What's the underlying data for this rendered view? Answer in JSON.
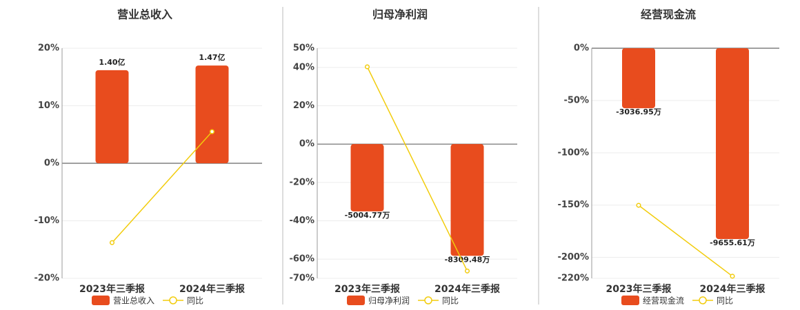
{
  "chart_data": [
    {
      "type": "bar",
      "title": "营业总收入",
      "categories": [
        "2023年三季报",
        "2024年三季报"
      ],
      "series": [
        {
          "name": "营业总收入",
          "color": "#e84c1e",
          "axis": "y2",
          "values": [
            1.4,
            1.47
          ],
          "value_labels": [
            "1.40亿",
            "1.47亿"
          ]
        },
        {
          "name": "同比",
          "type": "line",
          "color": "#f2cc0c",
          "values": [
            -13.8,
            5.5
          ]
        }
      ],
      "ylim": [
        -20,
        20
      ],
      "yticks": [
        {
          "value": 20,
          "label": "20%"
        },
        {
          "value": 10,
          "label": "10%"
        },
        {
          "value": 0,
          "label": "0%"
        },
        {
          "value": -10,
          "label": "-10%"
        },
        {
          "value": -20,
          "label": "-20%"
        }
      ],
      "y2lim": [
        -1.73,
        1.73
      ],
      "grid": true
    },
    {
      "type": "bar",
      "title": "归母净利润",
      "categories": [
        "2023年三季报",
        "2024年三季报"
      ],
      "series": [
        {
          "name": "归母净利润",
          "color": "#e84c1e",
          "axis": "y2",
          "values": [
            -5004.77,
            -8309.48
          ],
          "value_labels": [
            "-5004.77万",
            "-8309.48万"
          ]
        },
        {
          "name": "同比",
          "type": "line",
          "color": "#f2cc0c",
          "values": [
            40.3,
            -66.2
          ]
        }
      ],
      "ylim": [
        -70,
        50
      ],
      "yticks": [
        {
          "value": 50,
          "label": "50%"
        },
        {
          "value": 40,
          "label": "40%"
        },
        {
          "value": 20,
          "label": "20%"
        },
        {
          "value": 0,
          "label": "0%"
        },
        {
          "value": -20,
          "label": "-20%"
        },
        {
          "value": -40,
          "label": "-40%"
        },
        {
          "value": -60,
          "label": "-60%"
        },
        {
          "value": -70,
          "label": "-70%"
        }
      ],
      "y2lim": [
        -9980,
        7130
      ],
      "grid": true
    },
    {
      "type": "bar",
      "title": "经营现金流",
      "categories": [
        "2023年三季报",
        "2024年三季报"
      ],
      "series": [
        {
          "name": "经营现金流",
          "color": "#e84c1e",
          "axis": "y2",
          "values": [
            -3036.95,
            -9655.61
          ],
          "value_labels": [
            "-3036.95万",
            "-9655.61万"
          ]
        },
        {
          "name": "同比",
          "type": "line",
          "color": "#f2cc0c",
          "values": [
            -150.2,
            -218
          ]
        }
      ],
      "ylim": [
        -220,
        0
      ],
      "yticks": [
        {
          "value": 0,
          "label": "0%"
        },
        {
          "value": -50,
          "label": "-50%"
        },
        {
          "value": -100,
          "label": "-100%"
        },
        {
          "value": -150,
          "label": "-150%"
        },
        {
          "value": -200,
          "label": "-200%"
        },
        {
          "value": -220,
          "label": "-220%"
        }
      ],
      "y2lim": [
        -11640,
        0
      ],
      "grid": true
    }
  ]
}
